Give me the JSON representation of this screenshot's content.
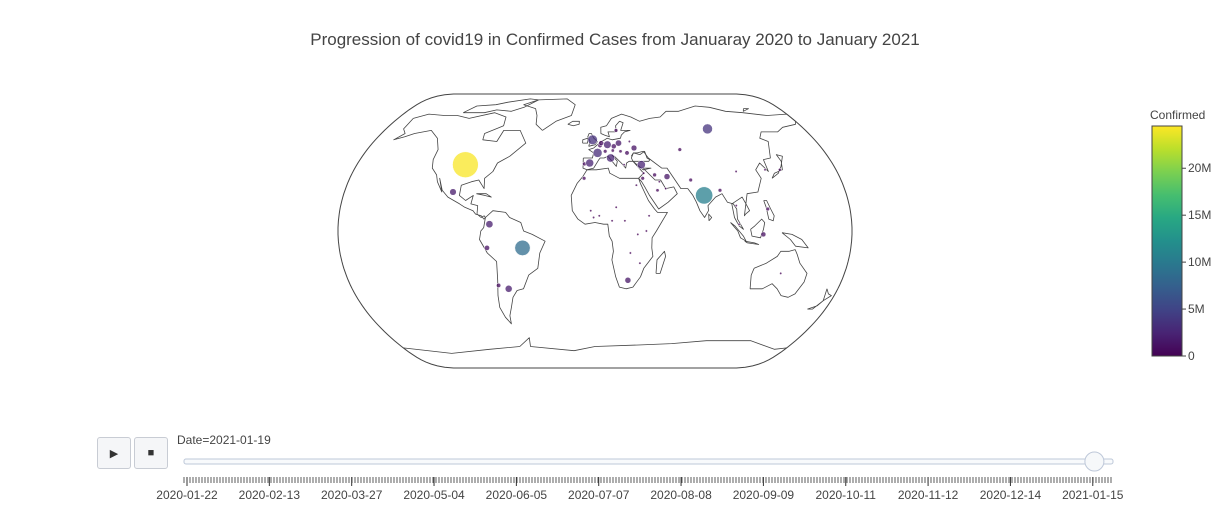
{
  "title": "Progression of covid19 in Confirmed Cases from Januaray 2020 to January 2021",
  "colorbar": {
    "title": "Confirmed",
    "ticks": [
      "0",
      "5M",
      "10M",
      "15M",
      "20M"
    ],
    "tick_values": [
      0,
      5,
      10,
      15,
      20
    ],
    "max": 24.5,
    "colors": [
      "#440154",
      "#3b528b",
      "#21918c",
      "#5ec962",
      "#fde725"
    ]
  },
  "controls": {
    "play_icon": "play-icon",
    "stop_icon": "stop-icon",
    "play_glyph": "▶",
    "stop_glyph": "■"
  },
  "slider": {
    "current_label": "Date=2021-01-19",
    "current_date": "2021-01-19",
    "ticks": [
      "2020-01-22",
      "2020-02-13",
      "2020-03-27",
      "2020-05-04",
      "2020-06-05",
      "2020-07-07",
      "2020-08-08",
      "2020-09-09",
      "2020-10-11",
      "2020-11-12",
      "2020-12-14",
      "2021-01-15"
    ],
    "position_fraction": 0.98
  },
  "chart_data": {
    "type": "scatter",
    "subtype": "scatter_geo",
    "projection": "natural earth",
    "size_variable": "Confirmed",
    "color_variable": "Confirmed",
    "colorscale": "Viridis",
    "date": "2021-01-19",
    "points": [
      {
        "lon": -98,
        "lat": 39,
        "confirmed": 24.3
      },
      {
        "lon": 78,
        "lat": 21,
        "confirmed": 10.6
      },
      {
        "lon": -51,
        "lat": -10,
        "confirmed": 8.6
      },
      {
        "lon": 97,
        "lat": 61,
        "confirmed": 3.6
      },
      {
        "lon": 2,
        "lat": 46,
        "confirmed": 3.0
      },
      {
        "lon": -2,
        "lat": 54,
        "confirmed": 3.4
      },
      {
        "lon": 12,
        "lat": 43,
        "confirmed": 2.4
      },
      {
        "lon": 35,
        "lat": 39,
        "confirmed": 2.4
      },
      {
        "lon": -4,
        "lat": 40,
        "confirmed": 2.3
      },
      {
        "lon": 10,
        "lat": 51,
        "confirmed": 2.1
      },
      {
        "lon": -74,
        "lat": 4,
        "confirmed": 1.9
      },
      {
        "lon": -64,
        "lat": -34,
        "confirmed": 1.8
      },
      {
        "lon": -102,
        "lat": 23,
        "confirmed": 1.6
      },
      {
        "lon": 19,
        "lat": 52,
        "confirmed": 1.4
      },
      {
        "lon": 53,
        "lat": 32,
        "confirmed": 1.3
      },
      {
        "lon": 24,
        "lat": -29,
        "confirmed": 1.3
      },
      {
        "lon": 31,
        "lat": 49,
        "confirmed": 1.2
      },
      {
        "lon": -76,
        "lat": -10,
        "confirmed": 1.0
      },
      {
        "lon": 118,
        "lat": -2,
        "confirmed": 0.9
      },
      {
        "lon": 15,
        "lat": 50,
        "confirmed": 0.9
      },
      {
        "lon": 5,
        "lat": 52,
        "confirmed": 0.9
      },
      {
        "lon": 25,
        "lat": 46,
        "confirmed": 0.7
      },
      {
        "lon": -71,
        "lat": -32,
        "confirmed": 0.7
      },
      {
        "lon": 4,
        "lat": 50.5,
        "confirmed": 0.7
      },
      {
        "lon": 44,
        "lat": 33,
        "confirmed": 0.6
      },
      {
        "lon": 122,
        "lat": 13,
        "confirmed": 0.5
      },
      {
        "lon": 67,
        "lat": 48,
        "confirmed": 0.5
      },
      {
        "lon": 45,
        "lat": 24,
        "confirmed": 0.4
      },
      {
        "lon": 70,
        "lat": 30,
        "confirmed": 0.5
      },
      {
        "lon": 30,
        "lat": 27,
        "confirmed": 0.2
      },
      {
        "lon": -8,
        "lat": 31,
        "confirmed": 0.5
      },
      {
        "lon": 35,
        "lat": 31,
        "confirmed": 0.5
      },
      {
        "lon": 8,
        "lat": 47,
        "confirmed": 0.5
      },
      {
        "lon": 18,
        "lat": 60,
        "confirmed": 0.5
      },
      {
        "lon": 14,
        "lat": 47.5,
        "confirmed": 0.4
      },
      {
        "lon": -8,
        "lat": 39.5,
        "confirmed": 0.6
      },
      {
        "lon": 22,
        "lat": 39,
        "confirmed": 0.2
      },
      {
        "lon": 20,
        "lat": 47,
        "confirmed": 0.4
      },
      {
        "lon": 28,
        "lat": 53,
        "confirmed": 0.2
      },
      {
        "lon": 90,
        "lat": 24,
        "confirmed": 0.5
      },
      {
        "lon": 36,
        "lat": 0,
        "confirmed": 0.1
      },
      {
        "lon": 3,
        "lat": 9,
        "confirmed": 0.1
      },
      {
        "lon": 30,
        "lat": -2,
        "confirmed": 0.02
      },
      {
        "lon": 21,
        "lat": 6,
        "confirmed": 0.02
      },
      {
        "lon": 15,
        "lat": 14,
        "confirmed": 0.01
      },
      {
        "lon": -1,
        "lat": 8,
        "confirmed": 0.06
      },
      {
        "lon": 38,
        "lat": 9,
        "confirmed": 0.13
      },
      {
        "lon": 47,
        "lat": 29,
        "confirmed": 0.16
      },
      {
        "lon": 51,
        "lat": 25,
        "confirmed": 0.15
      },
      {
        "lon": 36,
        "lat": 34,
        "confirmed": 0.25
      },
      {
        "lon": 105,
        "lat": 35,
        "confirmed": 0.1
      },
      {
        "lon": 101,
        "lat": 4,
        "confirmed": 0.17
      },
      {
        "lon": 100,
        "lat": 15,
        "confirmed": 0.01
      },
      {
        "lon": 138,
        "lat": 36,
        "confirmed": 0.34
      },
      {
        "lon": 127,
        "lat": 36,
        "confirmed": 0.07
      },
      {
        "lon": 134,
        "lat": -25,
        "confirmed": 0.03
      },
      {
        "lon": -3,
        "lat": 12,
        "confirmed": 0.01
      },
      {
        "lon": 12,
        "lat": 6,
        "confirmed": 0.03
      },
      {
        "lon": 25,
        "lat": -13,
        "confirmed": 0.04
      },
      {
        "lon": 32,
        "lat": -19,
        "confirmed": 0.03
      }
    ]
  }
}
